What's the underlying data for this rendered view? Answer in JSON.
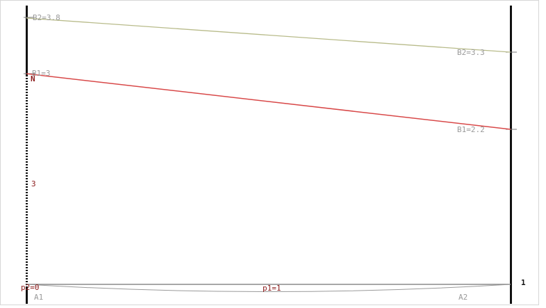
{
  "colors": {
    "line_b2": "#b8bb8a",
    "line_b1": "#d84848",
    "left_axis": "#111111",
    "right_axis": "#111111",
    "baseline": "#8a8a8a",
    "label_gray": "#9a9a9a",
    "label_dark": "#8b1a1a",
    "frame_border": "#d6d6d6"
  },
  "labels": {
    "b2_left": "B2=3.8",
    "b2_right": "B2=3.3",
    "b1_left": "B1=3",
    "b1_right": "B1=2.2",
    "n_marker": "N",
    "mid_value": "3",
    "p2": "p2=0",
    "p1": "p1=1",
    "right_index": "1",
    "a1": "A1",
    "a2": "A2"
  }
}
